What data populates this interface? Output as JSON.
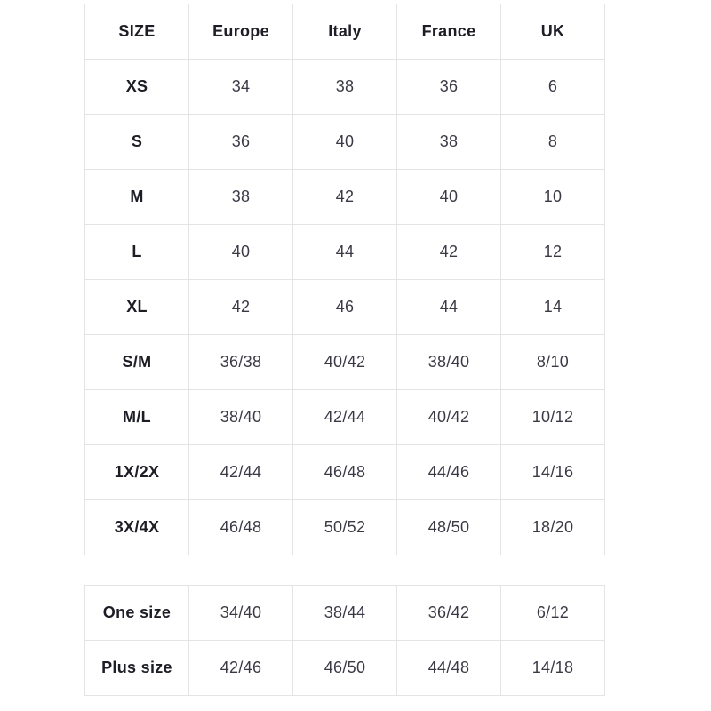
{
  "colors": {
    "background": "#ffffff",
    "border": "#e4e4e6",
    "header_text": "#1d1d26",
    "cell_text": "#3a3a46"
  },
  "size_chart": {
    "columns": [
      "SIZE",
      "Europe",
      "Italy",
      "France",
      "UK"
    ],
    "rows": [
      {
        "size": "XS",
        "values": [
          "34",
          "38",
          "36",
          "6"
        ]
      },
      {
        "size": "S",
        "values": [
          "36",
          "40",
          "38",
          "8"
        ]
      },
      {
        "size": "M",
        "values": [
          "38",
          "42",
          "40",
          "10"
        ]
      },
      {
        "size": "L",
        "values": [
          "40",
          "44",
          "42",
          "12"
        ]
      },
      {
        "size": "XL",
        "values": [
          "42",
          "46",
          "44",
          "14"
        ]
      },
      {
        "size": "S/M",
        "values": [
          "36/38",
          "40/42",
          "38/40",
          "8/10"
        ]
      },
      {
        "size": "M/L",
        "values": [
          "38/40",
          "42/44",
          "40/42",
          "10/12"
        ]
      },
      {
        "size": "1X/2X",
        "values": [
          "42/44",
          "46/48",
          "44/46",
          "14/16"
        ]
      },
      {
        "size": "3X/4X",
        "values": [
          "46/48",
          "50/52",
          "48/50",
          "18/20"
        ]
      }
    ]
  },
  "special_sizes": {
    "rows": [
      {
        "size": "One size",
        "values": [
          "34/40",
          "38/44",
          "36/42",
          "6/12"
        ]
      },
      {
        "size": "Plus size",
        "values": [
          "42/46",
          "46/50",
          "44/48",
          "14/18"
        ]
      }
    ]
  }
}
